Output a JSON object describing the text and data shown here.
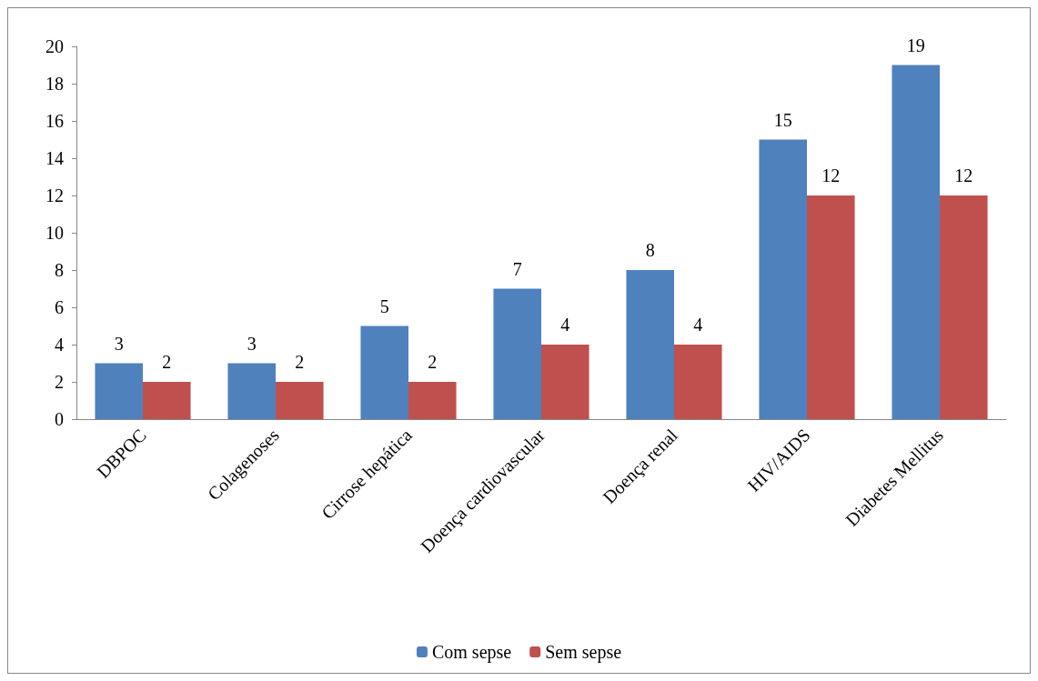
{
  "chart_data": {
    "type": "bar",
    "categories": [
      "DBPOC",
      "Colagenoses",
      "Cirrose hepática",
      "Doença cardiovascular",
      "Doença renal",
      "HIV/AIDS",
      "Diabetes Mellitus"
    ],
    "series": [
      {
        "name": "Com sepse",
        "color": "#4f81bd",
        "values": [
          3,
          3,
          5,
          7,
          8,
          15,
          19
        ]
      },
      {
        "name": "Sem sepse",
        "color": "#c0504d",
        "values": [
          2,
          2,
          2,
          4,
          4,
          12,
          12
        ]
      }
    ],
    "ylim": [
      0,
      20
    ],
    "yticks": [
      0,
      2,
      4,
      6,
      8,
      10,
      12,
      14,
      16,
      18,
      20
    ],
    "grid": false,
    "legend": "bottom",
    "data_labels": true
  }
}
